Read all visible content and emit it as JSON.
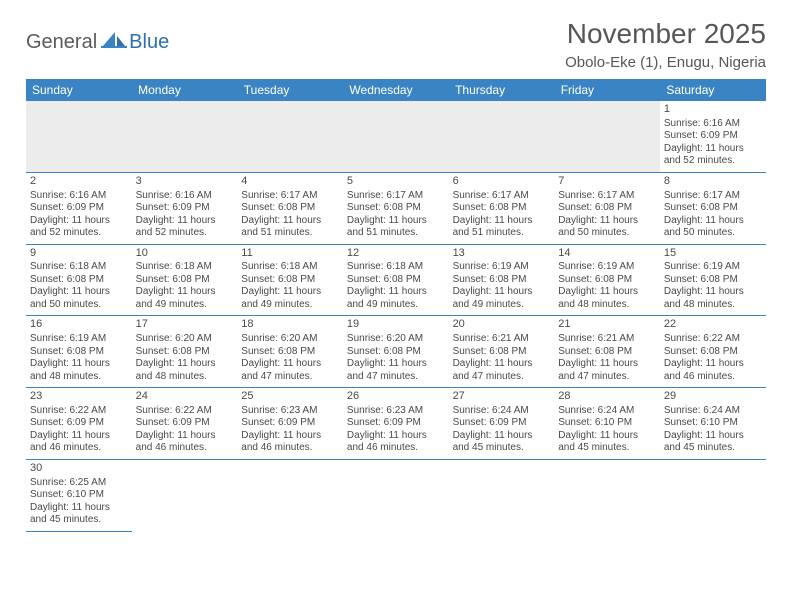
{
  "logo": {
    "text1": "General",
    "text2": "Blue"
  },
  "title": "November 2025",
  "location": "Obolo-Eke (1), Enugu, Nigeria",
  "colors": {
    "header_bg": "#3b84c4",
    "header_fg": "#ffffff",
    "text": "#4a4a4a",
    "blank_bg": "#ececec",
    "rule": "#3b84c4"
  },
  "weekdays": [
    "Sunday",
    "Monday",
    "Tuesday",
    "Wednesday",
    "Thursday",
    "Friday",
    "Saturday"
  ],
  "leading_blanks": 6,
  "days": [
    {
      "n": 1,
      "sr": "6:16 AM",
      "ss": "6:09 PM",
      "dl": "11 hours and 52 minutes."
    },
    {
      "n": 2,
      "sr": "6:16 AM",
      "ss": "6:09 PM",
      "dl": "11 hours and 52 minutes."
    },
    {
      "n": 3,
      "sr": "6:16 AM",
      "ss": "6:09 PM",
      "dl": "11 hours and 52 minutes."
    },
    {
      "n": 4,
      "sr": "6:17 AM",
      "ss": "6:08 PM",
      "dl": "11 hours and 51 minutes."
    },
    {
      "n": 5,
      "sr": "6:17 AM",
      "ss": "6:08 PM",
      "dl": "11 hours and 51 minutes."
    },
    {
      "n": 6,
      "sr": "6:17 AM",
      "ss": "6:08 PM",
      "dl": "11 hours and 51 minutes."
    },
    {
      "n": 7,
      "sr": "6:17 AM",
      "ss": "6:08 PM",
      "dl": "11 hours and 50 minutes."
    },
    {
      "n": 8,
      "sr": "6:17 AM",
      "ss": "6:08 PM",
      "dl": "11 hours and 50 minutes."
    },
    {
      "n": 9,
      "sr": "6:18 AM",
      "ss": "6:08 PM",
      "dl": "11 hours and 50 minutes."
    },
    {
      "n": 10,
      "sr": "6:18 AM",
      "ss": "6:08 PM",
      "dl": "11 hours and 49 minutes."
    },
    {
      "n": 11,
      "sr": "6:18 AM",
      "ss": "6:08 PM",
      "dl": "11 hours and 49 minutes."
    },
    {
      "n": 12,
      "sr": "6:18 AM",
      "ss": "6:08 PM",
      "dl": "11 hours and 49 minutes."
    },
    {
      "n": 13,
      "sr": "6:19 AM",
      "ss": "6:08 PM",
      "dl": "11 hours and 49 minutes."
    },
    {
      "n": 14,
      "sr": "6:19 AM",
      "ss": "6:08 PM",
      "dl": "11 hours and 48 minutes."
    },
    {
      "n": 15,
      "sr": "6:19 AM",
      "ss": "6:08 PM",
      "dl": "11 hours and 48 minutes."
    },
    {
      "n": 16,
      "sr": "6:19 AM",
      "ss": "6:08 PM",
      "dl": "11 hours and 48 minutes."
    },
    {
      "n": 17,
      "sr": "6:20 AM",
      "ss": "6:08 PM",
      "dl": "11 hours and 48 minutes."
    },
    {
      "n": 18,
      "sr": "6:20 AM",
      "ss": "6:08 PM",
      "dl": "11 hours and 47 minutes."
    },
    {
      "n": 19,
      "sr": "6:20 AM",
      "ss": "6:08 PM",
      "dl": "11 hours and 47 minutes."
    },
    {
      "n": 20,
      "sr": "6:21 AM",
      "ss": "6:08 PM",
      "dl": "11 hours and 47 minutes."
    },
    {
      "n": 21,
      "sr": "6:21 AM",
      "ss": "6:08 PM",
      "dl": "11 hours and 47 minutes."
    },
    {
      "n": 22,
      "sr": "6:22 AM",
      "ss": "6:08 PM",
      "dl": "11 hours and 46 minutes."
    },
    {
      "n": 23,
      "sr": "6:22 AM",
      "ss": "6:09 PM",
      "dl": "11 hours and 46 minutes."
    },
    {
      "n": 24,
      "sr": "6:22 AM",
      "ss": "6:09 PM",
      "dl": "11 hours and 46 minutes."
    },
    {
      "n": 25,
      "sr": "6:23 AM",
      "ss": "6:09 PM",
      "dl": "11 hours and 46 minutes."
    },
    {
      "n": 26,
      "sr": "6:23 AM",
      "ss": "6:09 PM",
      "dl": "11 hours and 46 minutes."
    },
    {
      "n": 27,
      "sr": "6:24 AM",
      "ss": "6:09 PM",
      "dl": "11 hours and 45 minutes."
    },
    {
      "n": 28,
      "sr": "6:24 AM",
      "ss": "6:10 PM",
      "dl": "11 hours and 45 minutes."
    },
    {
      "n": 29,
      "sr": "6:24 AM",
      "ss": "6:10 PM",
      "dl": "11 hours and 45 minutes."
    },
    {
      "n": 30,
      "sr": "6:25 AM",
      "ss": "6:10 PM",
      "dl": "11 hours and 45 minutes."
    }
  ],
  "labels": {
    "sunrise": "Sunrise:",
    "sunset": "Sunset:",
    "daylight": "Daylight:"
  }
}
